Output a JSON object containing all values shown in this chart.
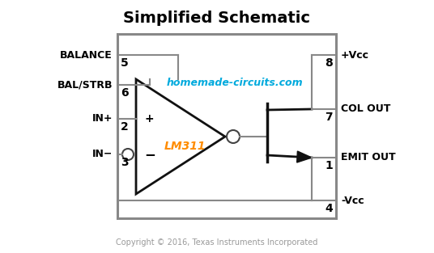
{
  "title": "Simplified Schematic",
  "title_fontsize": 14,
  "title_fontweight": "bold",
  "watermark": "homemade-circuits.com",
  "watermark_color": "#00AADD",
  "lm311_color": "#FF8C00",
  "copyright": "Copyright © 2016, Texas Instruments Incorporated",
  "copyright_color": "#999999",
  "bg_color": "#FFFFFF",
  "box_color": "#888888",
  "line_color": "#888888",
  "text_color": "#000000"
}
